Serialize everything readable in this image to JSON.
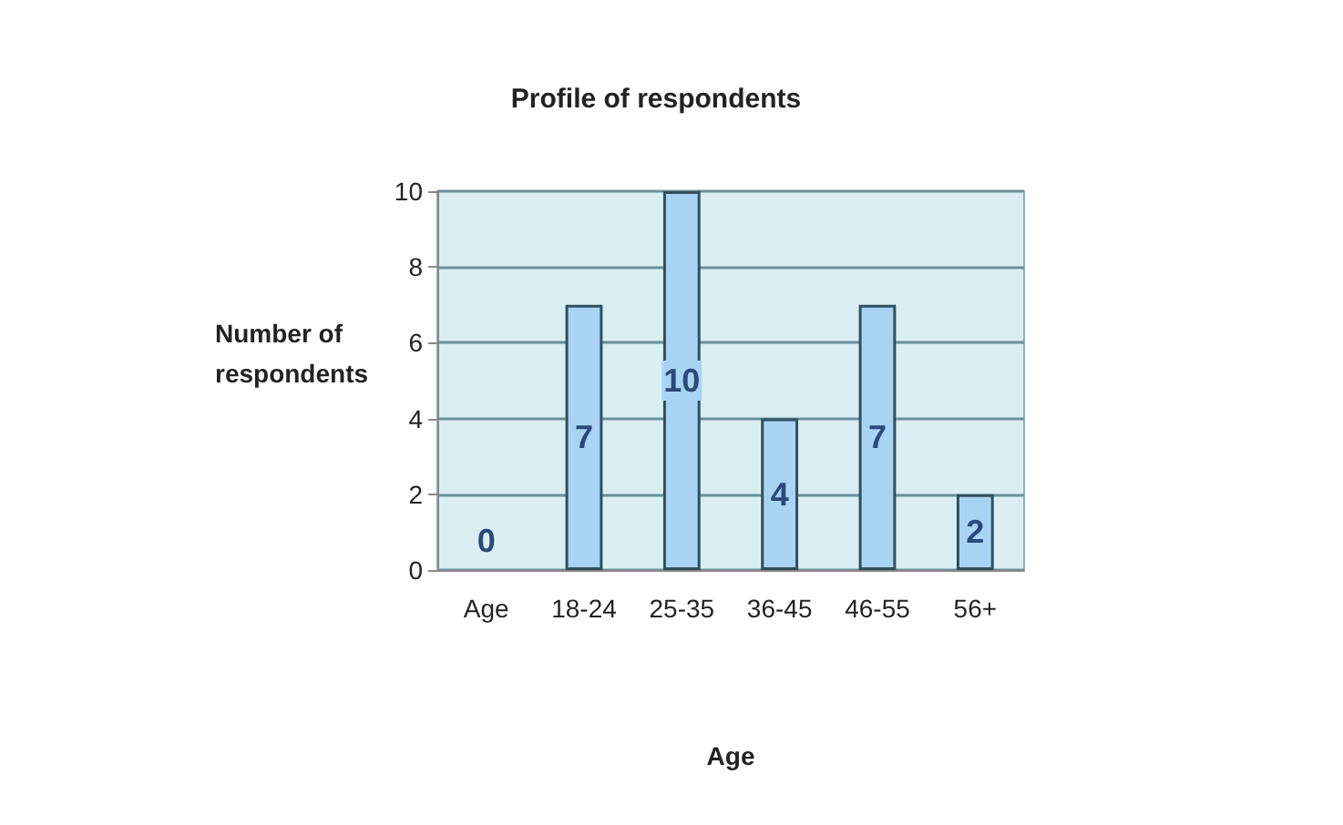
{
  "chart_data": {
    "type": "bar",
    "title": "Profile of respondents",
    "xlabel": "Age",
    "ylabel": "Number of respondents",
    "categories": [
      "Age",
      "18-24",
      "25-35",
      "36-45",
      "46-55",
      "56+"
    ],
    "values": [
      0,
      7,
      10,
      4,
      7,
      2
    ],
    "color": "#a9d3f2",
    "ylim": [
      0,
      10
    ],
    "yticks": [
      0,
      2,
      4,
      6,
      8,
      10
    ],
    "grid": "y",
    "data_labels": true
  }
}
